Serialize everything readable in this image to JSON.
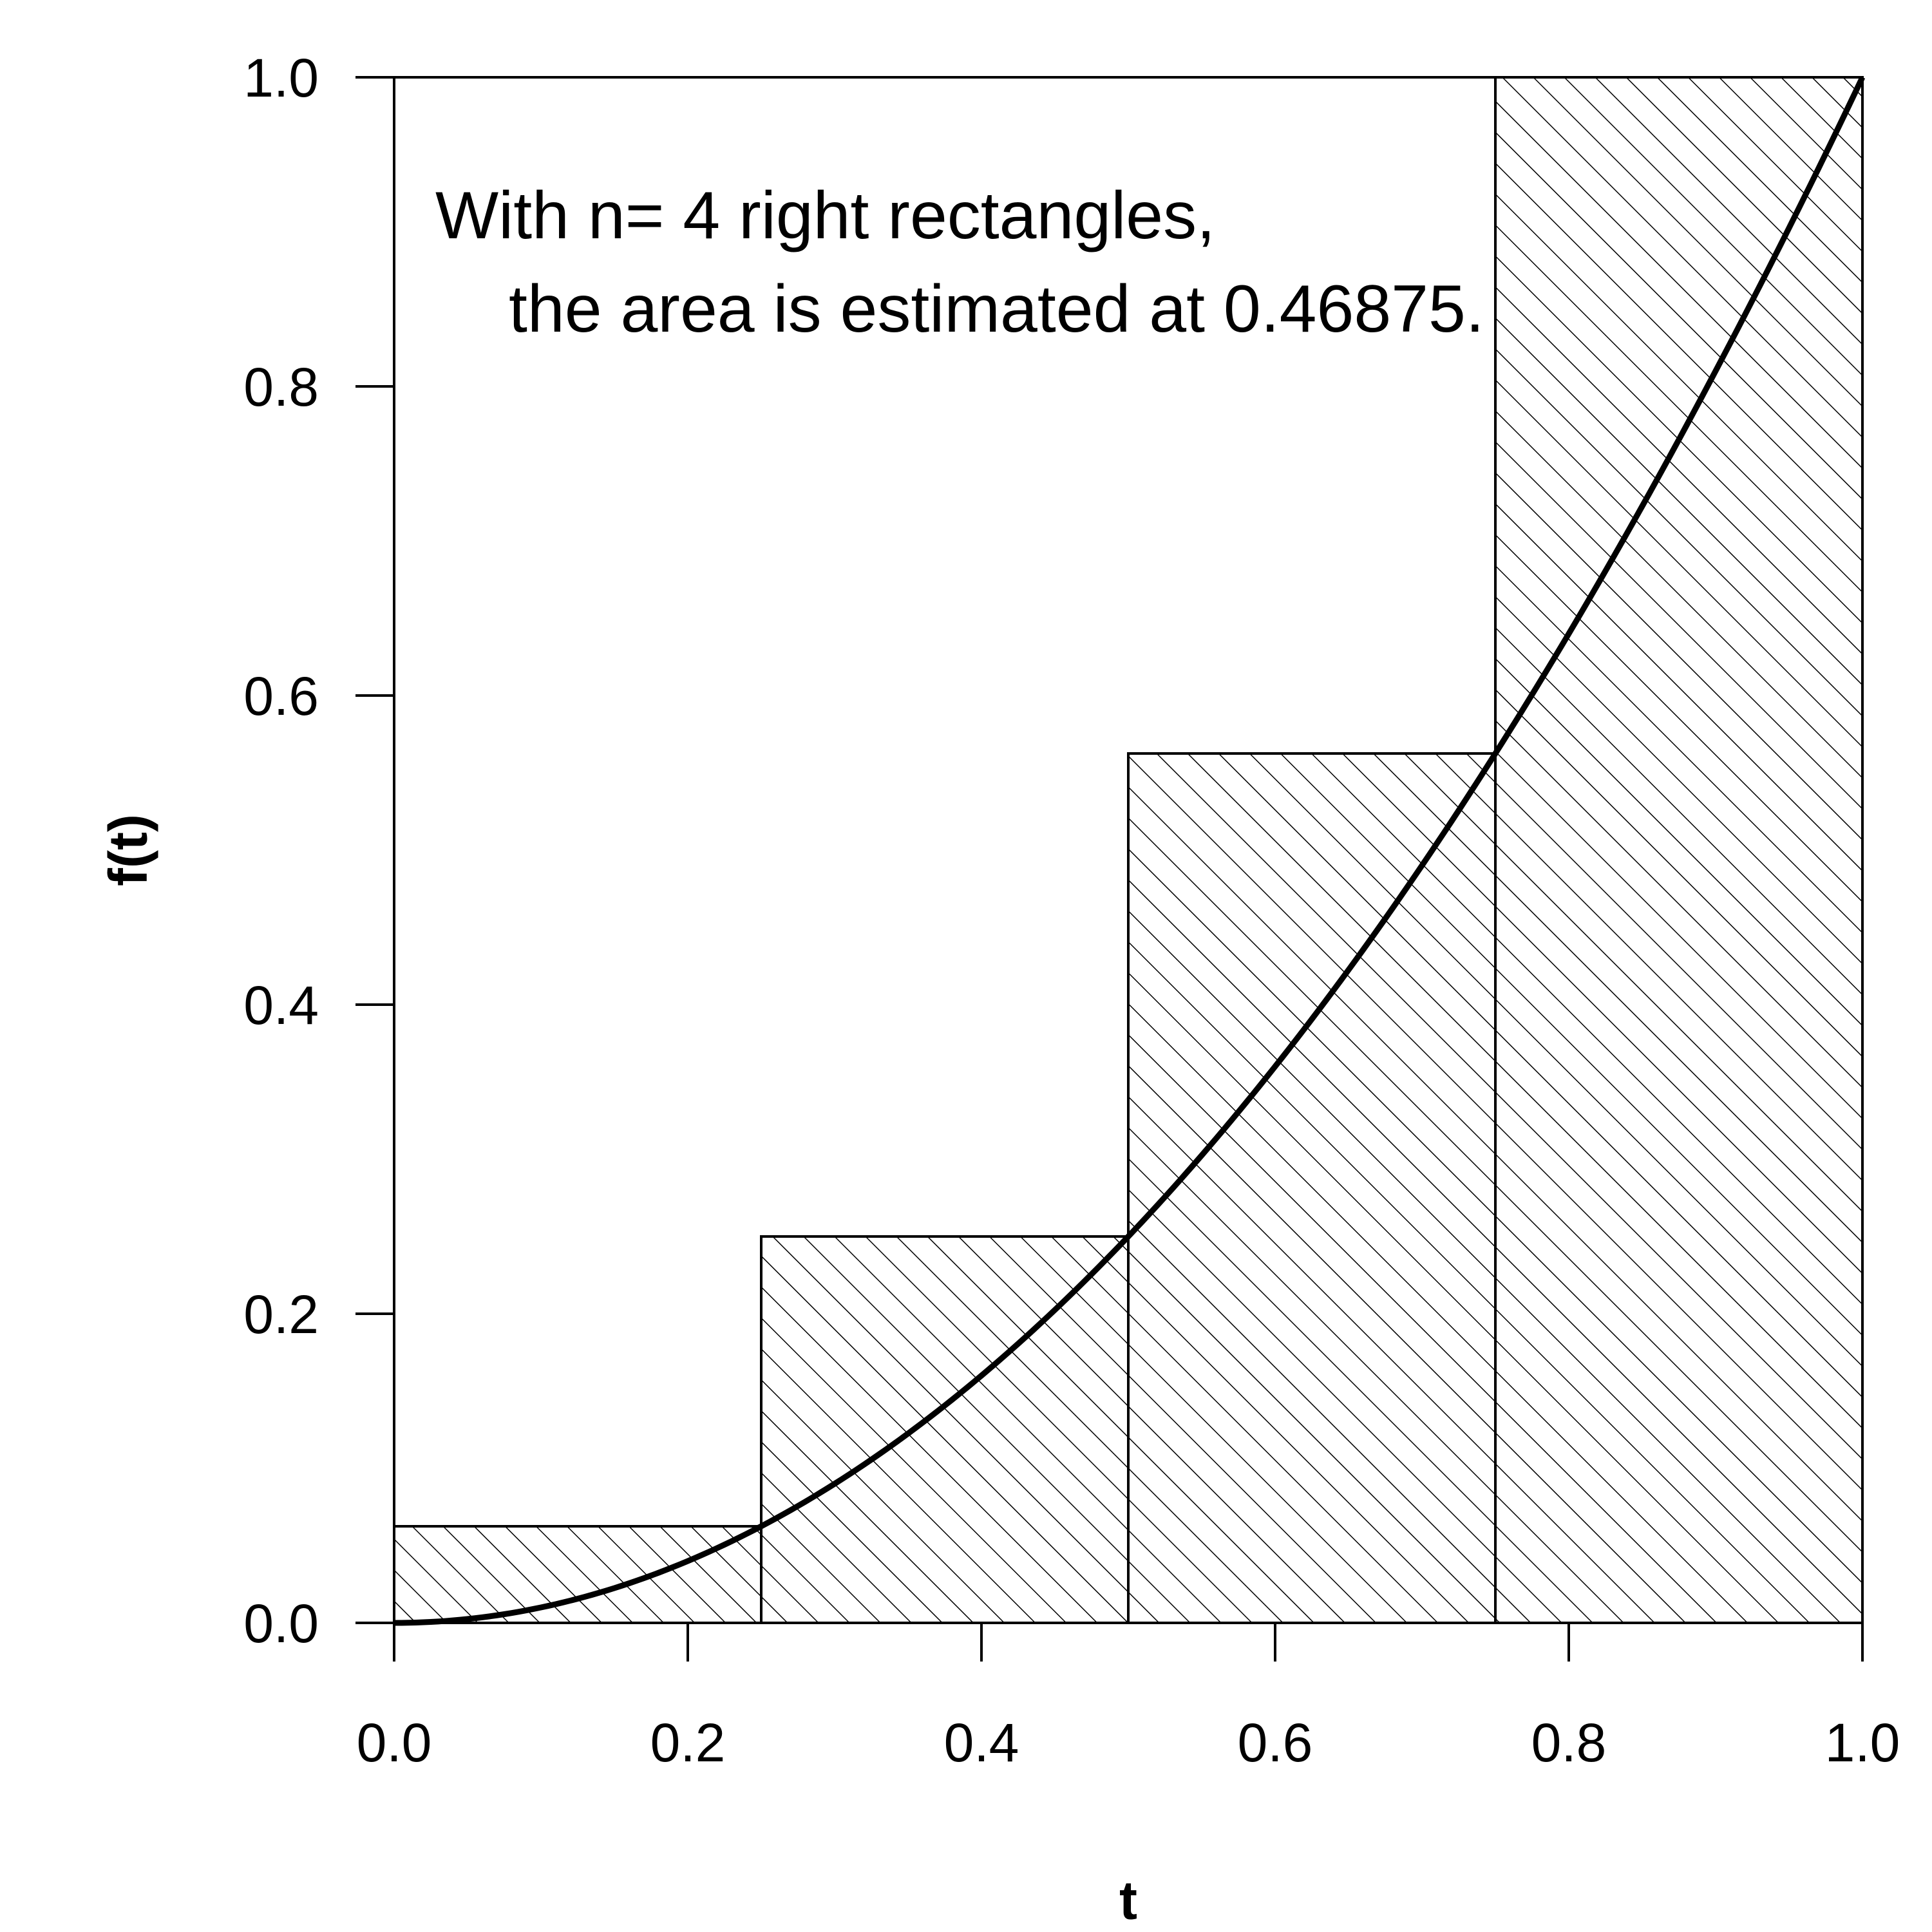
{
  "chart_data": {
    "type": "bar",
    "title": "",
    "xlabel": "t",
    "ylabel": "f(t)",
    "xlim": [
      0,
      1
    ],
    "ylim": [
      0,
      1
    ],
    "x_ticks": [
      "0.0",
      "0.2",
      "0.4",
      "0.6",
      "0.8",
      "1.0"
    ],
    "y_ticks": [
      "0.0",
      "0.2",
      "0.4",
      "0.6",
      "0.8",
      "1.0"
    ],
    "rectangles": [
      {
        "x0": 0.0,
        "x1": 0.25,
        "height": 0.0625
      },
      {
        "x0": 0.25,
        "x1": 0.5,
        "height": 0.25
      },
      {
        "x0": 0.5,
        "x1": 0.75,
        "height": 0.5625
      },
      {
        "x0": 0.75,
        "x1": 1.0,
        "height": 1.0
      }
    ],
    "curve": {
      "function": "f(t) = t^2",
      "x": [
        0,
        0.05,
        0.1,
        0.15,
        0.2,
        0.25,
        0.3,
        0.35,
        0.4,
        0.45,
        0.5,
        0.55,
        0.6,
        0.65,
        0.7,
        0.75,
        0.8,
        0.85,
        0.9,
        0.95,
        1.0
      ]
    },
    "fill_pattern": "diagonal-hatch",
    "grid": false,
    "annotation": {
      "line1": "With n= 4 right rectangles,",
      "line2": "the area is estimated at 0.46875."
    }
  }
}
